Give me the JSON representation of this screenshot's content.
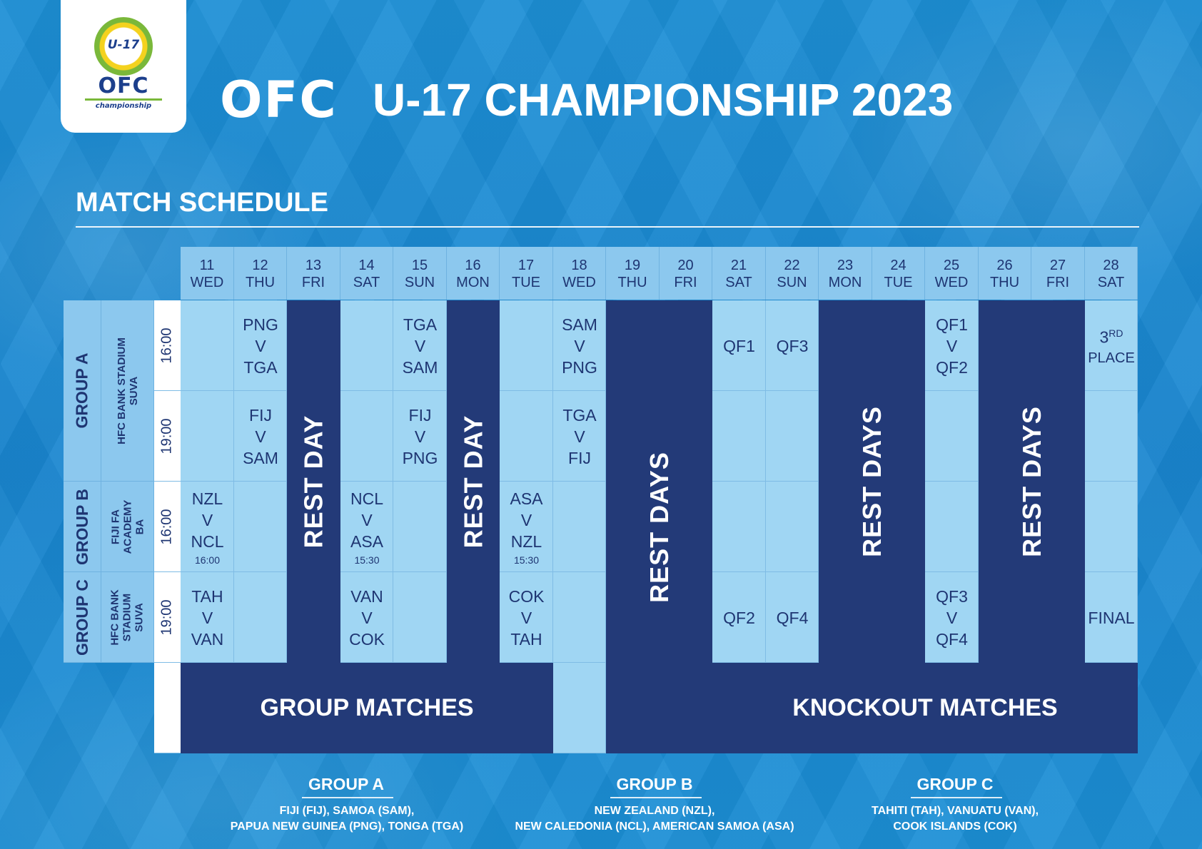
{
  "logo": {
    "badge": "U-17",
    "name": "OFC",
    "sub": "championship"
  },
  "title": {
    "brand": "OFC",
    "rest": "U-17 CHAMPIONSHIP 2023"
  },
  "section_title": "MATCH SCHEDULE",
  "days": [
    {
      "date": "11",
      "day": "WED"
    },
    {
      "date": "12",
      "day": "THU"
    },
    {
      "date": "13",
      "day": "FRI"
    },
    {
      "date": "14",
      "day": "SAT"
    },
    {
      "date": "15",
      "day": "SUN"
    },
    {
      "date": "16",
      "day": "MON"
    },
    {
      "date": "17",
      "day": "TUE"
    },
    {
      "date": "18",
      "day": "WED"
    },
    {
      "date": "19",
      "day": "THU"
    },
    {
      "date": "20",
      "day": "FRI"
    },
    {
      "date": "21",
      "day": "SAT"
    },
    {
      "date": "22",
      "day": "SUN"
    },
    {
      "date": "23",
      "day": "MON"
    },
    {
      "date": "24",
      "day": "TUE"
    },
    {
      "date": "25",
      "day": "WED"
    },
    {
      "date": "26",
      "day": "THU"
    },
    {
      "date": "27",
      "day": "FRI"
    },
    {
      "date": "28",
      "day": "SAT"
    }
  ],
  "groups": {
    "a": {
      "label": "GROUP A",
      "venue": "HFC BANK STADIUM\nSUVA"
    },
    "b": {
      "label": "GROUP B",
      "venue": "FIJI FA\nACADEMY\nBA"
    },
    "c": {
      "label": "GROUP C",
      "venue": "HFC BANK\nSTADIUM\nSUVA"
    }
  },
  "times": {
    "r1": "16:00",
    "r2": "19:00",
    "r3": "16:00",
    "r4": "19:00"
  },
  "matches": {
    "a1_12": [
      "PNG",
      "V",
      "TGA"
    ],
    "a1_15": [
      "TGA",
      "V",
      "SAM"
    ],
    "a1_18": [
      "SAM",
      "V",
      "PNG"
    ],
    "a2_12": [
      "FIJ",
      "V",
      "SAM"
    ],
    "a2_15": [
      "FIJ",
      "V",
      "PNG"
    ],
    "a2_18": [
      "TGA",
      "V",
      "FIJ"
    ],
    "b_11": [
      "NZL",
      "V",
      "NCL",
      "16:00"
    ],
    "b_14": [
      "NCL",
      "V",
      "ASA",
      "15:30"
    ],
    "b_17": [
      "ASA",
      "V",
      "NZL",
      "15:30"
    ],
    "c_11": [
      "TAH",
      "V",
      "VAN"
    ],
    "c_14": [
      "VAN",
      "V",
      "COK"
    ],
    "c_17": [
      "COK",
      "V",
      "TAH"
    ],
    "qf1": "QF1",
    "qf3": "QF3",
    "qf2": "QF2",
    "qf4": "QF4",
    "sf1": [
      "QF1",
      "V",
      "QF2"
    ],
    "sf2": [
      "QF3",
      "V",
      "QF4"
    ],
    "third": {
      "num": "3",
      "sup": "RD",
      "word": "PLACE"
    },
    "final": "FINAL"
  },
  "rest": {
    "day": "REST DAY",
    "days": "REST DAYS"
  },
  "banners": {
    "group": "GROUP MATCHES",
    "knockout": "KNOCKOUT MATCHES"
  },
  "legend": [
    {
      "title": "GROUP A",
      "line1": "FIJI (FIJ), SAMOA (SAM),",
      "line2": "PAPUA NEW GUINEA (PNG), TONGA (TGA)"
    },
    {
      "title": "GROUP B",
      "line1": "NEW ZEALAND (NZL),",
      "line2": "NEW CALEDONIA (NCL), AMERICAN SAMOA (ASA)"
    },
    {
      "title": "GROUP C",
      "line1": "TAHITI (TAH), VANUATU (VAN),",
      "line2": "COOK ISLANDS (COK)"
    }
  ]
}
